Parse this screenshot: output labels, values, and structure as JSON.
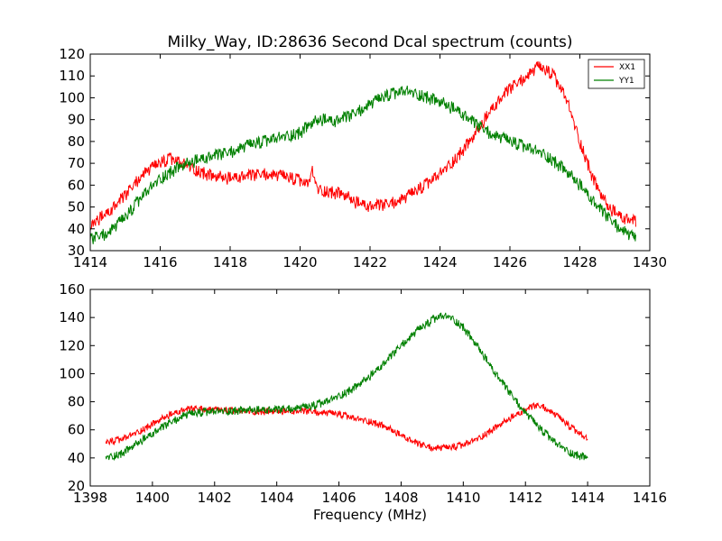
{
  "window": {
    "title": "Milky_Way, ID:28636 Second Dcal spectrum (counts)"
  },
  "chart_data": [
    {
      "type": "line",
      "title": "Milky_Way, ID:28636 Second Dcal spectrum (counts)",
      "xlabel": "",
      "ylabel": "",
      "xlim": [
        1414,
        1430
      ],
      "ylim": [
        30,
        120
      ],
      "xticks": [
        "1414",
        "1416",
        "1418",
        "1420",
        "1422",
        "1424",
        "1426",
        "1428",
        "1430"
      ],
      "yticks": [
        "30",
        "40",
        "50",
        "60",
        "70",
        "80",
        "90",
        "100",
        "110",
        "120"
      ],
      "grid": false,
      "legend": {
        "position": "top-right",
        "entries": [
          "XX1",
          "YY1"
        ]
      },
      "series": [
        {
          "name": "XX1",
          "color": "#ff0000",
          "noise": 3,
          "x": [
            1414.0,
            1414.5,
            1415.0,
            1415.5,
            1416.0,
            1416.3,
            1416.6,
            1417.0,
            1417.5,
            1418.0,
            1418.5,
            1419.0,
            1419.5,
            1420.0,
            1420.2,
            1420.35,
            1420.5,
            1420.8,
            1421.2,
            1421.6,
            1422.0,
            1422.5,
            1423.0,
            1423.5,
            1424.0,
            1424.5,
            1425.0,
            1425.5,
            1426.0,
            1426.5,
            1426.8,
            1427.2,
            1427.6,
            1428.0,
            1428.4,
            1428.8,
            1429.2,
            1429.6
          ],
          "y": [
            42,
            47,
            55,
            65,
            70,
            72,
            70,
            67,
            64,
            63,
            64,
            65,
            64,
            62,
            60,
            66,
            58,
            57,
            56,
            52,
            50,
            51,
            54,
            59,
            65,
            73,
            83,
            95,
            104,
            110,
            114,
            111,
            100,
            80,
            62,
            50,
            45,
            43
          ]
        },
        {
          "name": "YY1",
          "color": "#008000",
          "noise": 3,
          "x": [
            1414.0,
            1414.5,
            1415.0,
            1415.5,
            1416.0,
            1416.5,
            1417.0,
            1417.5,
            1418.0,
            1418.5,
            1419.0,
            1419.5,
            1420.0,
            1420.3,
            1420.6,
            1421.0,
            1421.5,
            1422.0,
            1422.5,
            1423.0,
            1423.5,
            1424.0,
            1424.5,
            1425.0,
            1425.5,
            1426.0,
            1426.5,
            1427.0,
            1427.5,
            1428.0,
            1428.5,
            1429.0,
            1429.6
          ],
          "y": [
            35,
            38,
            45,
            55,
            63,
            68,
            71,
            73,
            75,
            78,
            80,
            82,
            84,
            88,
            90,
            89,
            92,
            97,
            101,
            103,
            101,
            98,
            94,
            88,
            83,
            80,
            77,
            74,
            68,
            60,
            50,
            42,
            35
          ]
        }
      ]
    },
    {
      "type": "line",
      "title": "",
      "xlabel": "Frequency (MHz)",
      "ylabel": "",
      "xlim": [
        1398,
        1416
      ],
      "ylim": [
        20,
        160
      ],
      "xticks": [
        "1398",
        "1400",
        "1402",
        "1404",
        "1406",
        "1408",
        "1410",
        "1412",
        "1414",
        "1416"
      ],
      "yticks": [
        "20",
        "40",
        "60",
        "80",
        "100",
        "120",
        "140",
        "160"
      ],
      "grid": false,
      "series": [
        {
          "name": "XX1",
          "color": "#ff0000",
          "noise": 2.5,
          "x": [
            1398.5,
            1399.0,
            1399.5,
            1400.0,
            1400.5,
            1401.0,
            1401.5,
            1402.0,
            1403.0,
            1404.0,
            1405.0,
            1405.5,
            1406.0,
            1406.5,
            1407.0,
            1407.5,
            1408.0,
            1408.5,
            1409.0,
            1409.5,
            1410.0,
            1410.5,
            1411.0,
            1411.5,
            1412.0,
            1412.3,
            1412.6,
            1413.0,
            1413.5,
            1414.0
          ],
          "y": [
            51,
            53,
            58,
            64,
            70,
            74,
            75,
            74,
            73,
            73,
            73,
            72,
            71,
            68,
            66,
            62,
            56,
            50,
            47,
            47,
            49,
            54,
            61,
            68,
            74,
            77,
            76,
            70,
            61,
            53
          ]
        },
        {
          "name": "YY1",
          "color": "#008000",
          "noise": 3,
          "x": [
            1398.5,
            1399.0,
            1399.5,
            1400.0,
            1400.5,
            1401.0,
            1401.5,
            1402.0,
            1403.0,
            1404.0,
            1405.0,
            1405.5,
            1406.0,
            1406.5,
            1407.0,
            1407.5,
            1408.0,
            1408.5,
            1409.0,
            1409.3,
            1409.6,
            1410.0,
            1410.5,
            1411.0,
            1411.5,
            1412.0,
            1412.5,
            1413.0,
            1413.5,
            1414.0
          ],
          "y": [
            40,
            43,
            50,
            57,
            64,
            70,
            72,
            73,
            74,
            74,
            76,
            79,
            84,
            90,
            98,
            108,
            120,
            130,
            138,
            141,
            140,
            133,
            118,
            101,
            86,
            72,
            60,
            50,
            43,
            40
          ]
        }
      ]
    }
  ]
}
